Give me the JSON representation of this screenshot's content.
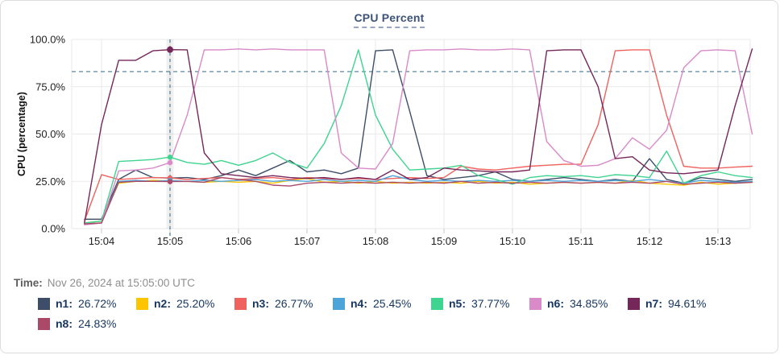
{
  "card": {
    "title": "CPU Percent"
  },
  "time_readout": {
    "label": "Time:",
    "value": "Nov 26, 2024 at 15:05:00 UTC"
  },
  "legend": {
    "items": [
      {
        "label": "n1:",
        "value": "26.72%",
        "color": "#3e4e68"
      },
      {
        "label": "n2:",
        "value": "25.20%",
        "color": "#fdc500"
      },
      {
        "label": "n3:",
        "value": "26.77%",
        "color": "#f0625d"
      },
      {
        "label": "n4:",
        "value": "25.45%",
        "color": "#4da4d8"
      },
      {
        "label": "n5:",
        "value": "37.77%",
        "color": "#3fd48f"
      },
      {
        "label": "n6:",
        "value": "34.85%",
        "color": "#d98ac8"
      },
      {
        "label": "n7:",
        "value": "94.61%",
        "color": "#76275a"
      },
      {
        "label": "n8:",
        "value": "24.83%",
        "color": "#aa4a68"
      }
    ]
  },
  "chart_data": {
    "type": "line",
    "title": "CPU Percent",
    "xlabel": "",
    "ylabel": "CPU (percentage)",
    "ylim": [
      0,
      100
    ],
    "grid": true,
    "legend_position": "bottom",
    "y_ticks": [
      {
        "value": 0,
        "label": "0.0%"
      },
      {
        "value": 25,
        "label": "25.0%"
      },
      {
        "value": 50,
        "label": "50.0%"
      },
      {
        "value": 75,
        "label": "75.0%"
      },
      {
        "value": 100,
        "label": "100.0%"
      }
    ],
    "x_ticks": [
      {
        "label": "15:04",
        "seconds": 15
      },
      {
        "label": "15:05",
        "seconds": 75
      },
      {
        "label": "15:06",
        "seconds": 135
      },
      {
        "label": "15:07",
        "seconds": 195
      },
      {
        "label": "15:08",
        "seconds": 255
      },
      {
        "label": "15:09",
        "seconds": 315
      },
      {
        "label": "15:10",
        "seconds": 375
      },
      {
        "label": "15:11",
        "seconds": 435
      },
      {
        "label": "15:12",
        "seconds": 495
      },
      {
        "label": "15:13",
        "seconds": 555
      }
    ],
    "threshold_line": {
      "value": 83,
      "style": "dashed",
      "color": "#4a7a94"
    },
    "crosshair": {
      "seconds": 75,
      "label": "15:05",
      "color": "#4a7a94",
      "marker_index": 5
    },
    "sample_interval_seconds": 15,
    "start_time_label": "15:03:45",
    "series": [
      {
        "name": "n1",
        "color": "#3e4e68",
        "value_at_crosshair": 26.72,
        "values": [
          5,
          5,
          26,
          31,
          27,
          26.72,
          27,
          26,
          28,
          31,
          28,
          32,
          36,
          30,
          31,
          29,
          32,
          94,
          94.5,
          62,
          28,
          26,
          27,
          28,
          30,
          26,
          25,
          26,
          27,
          26,
          25,
          26,
          25,
          37,
          26,
          24,
          27,
          26,
          25,
          26
        ]
      },
      {
        "name": "n2",
        "color": "#fdc500",
        "value_at_crosshair": 25.2,
        "values": [
          3,
          4,
          24,
          25,
          25.5,
          25.2,
          25,
          24.5,
          25,
          24.5,
          25,
          24,
          25.5,
          26.5,
          24.5,
          25,
          24,
          25,
          24,
          24.5,
          24,
          24.5,
          24,
          25,
          24,
          24.5,
          23.5,
          24,
          24.5,
          24,
          24.5,
          24,
          25.5,
          24,
          23.5,
          23,
          24.5,
          23.5,
          24,
          24.5
        ]
      },
      {
        "name": "n3",
        "color": "#f0625d",
        "value_at_crosshair": 26.77,
        "values": [
          4,
          28.5,
          26,
          26.5,
          27,
          26.77,
          26,
          26.5,
          27,
          26,
          26.5,
          27,
          26,
          27,
          26.5,
          26,
          26.5,
          26,
          26.5,
          27,
          26.5,
          27,
          33,
          31.5,
          31,
          32,
          33,
          33.5,
          34,
          34,
          55,
          94,
          94.5,
          94.5,
          60,
          33,
          32,
          32,
          32.5,
          33
        ]
      },
      {
        "name": "n4",
        "color": "#4da4d8",
        "value_at_crosshair": 25.45,
        "values": [
          2.5,
          3,
          25,
          25.5,
          25,
          25.45,
          25,
          25.5,
          25,
          25.5,
          26,
          25,
          25.5,
          25,
          26,
          25,
          25.5,
          25,
          28,
          26,
          25,
          25.5,
          25,
          25.5,
          25,
          25.5,
          25,
          25.5,
          25,
          25.5,
          25,
          25.5,
          25,
          26,
          25,
          24,
          25.5,
          25,
          24.5,
          25
        ]
      },
      {
        "name": "n5",
        "color": "#3fd48f",
        "value_at_crosshair": 37.77,
        "values": [
          3,
          4,
          35.5,
          36,
          36.5,
          37.77,
          35,
          34,
          36,
          33.5,
          36,
          40,
          35,
          32,
          45,
          65,
          94.5,
          60,
          42,
          31,
          31.5,
          32,
          33.5,
          28,
          26,
          23.5,
          27,
          28,
          27.5,
          28,
          27,
          28.5,
          28,
          27,
          41,
          24,
          28,
          30,
          28,
          27
        ]
      },
      {
        "name": "n6",
        "color": "#d98ac8",
        "value_at_crosshair": 34.85,
        "values": [
          2,
          3,
          30.5,
          31,
          32,
          34.85,
          60,
          94.5,
          94.5,
          95,
          94.5,
          95,
          94.5,
          94.5,
          94.5,
          40,
          32,
          31.5,
          45,
          94,
          94.5,
          94.5,
          95,
          94.5,
          94.5,
          95,
          94.5,
          46,
          36,
          33,
          33.5,
          37,
          48,
          42,
          52,
          85,
          94,
          94.5,
          94,
          50
        ]
      },
      {
        "name": "n7",
        "color": "#76275a",
        "value_at_crosshair": 94.61,
        "values": [
          3,
          55,
          89,
          89,
          94,
          94.61,
          94.5,
          40,
          29,
          28,
          27,
          28,
          27,
          26.5,
          27,
          26,
          27,
          26,
          31,
          26,
          27,
          32,
          31,
          30.5,
          30,
          30,
          31,
          94,
          94.5,
          94.5,
          75,
          37,
          38,
          31,
          29.5,
          29,
          30,
          31,
          65,
          95
        ]
      },
      {
        "name": "n8",
        "color": "#aa4a68",
        "value_at_crosshair": 24.83,
        "values": [
          2.5,
          3,
          24.5,
          25,
          25,
          24.83,
          25,
          24.5,
          27,
          26,
          25,
          23,
          22.5,
          24,
          24.5,
          24,
          24.5,
          24,
          24.5,
          24,
          24.5,
          24,
          25,
          24,
          24.5,
          24,
          24.5,
          24,
          24.5,
          24,
          24.5,
          24,
          24.5,
          24,
          25,
          23.5,
          24,
          24.5,
          24,
          24.5
        ]
      }
    ]
  }
}
